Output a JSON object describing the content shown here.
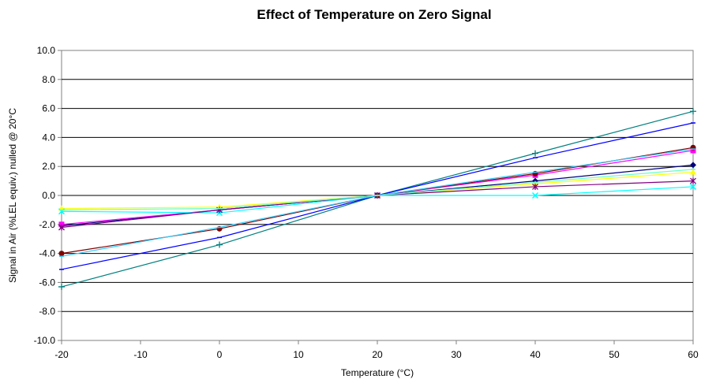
{
  "chart_data": {
    "type": "line",
    "title": "Effect of Temperature on Zero Signal",
    "xlabel": "Temperature (°C)",
    "ylabel": "Signal in Air (%LEL equiv.) nulled @ 20°C",
    "xlim": [
      -20,
      60
    ],
    "ylim": [
      -10,
      10
    ],
    "xticks": [
      -20,
      -10,
      0,
      10,
      20,
      30,
      40,
      50,
      60
    ],
    "yticks": [
      10,
      8,
      6,
      4,
      2,
      0,
      -2,
      -4,
      -6,
      -8,
      -10
    ],
    "ytick_labels": [
      "10.0",
      "8.0",
      "6.0",
      "4.0",
      "2.0",
      "0.0",
      "-2.0",
      "-4.0",
      "-6.0",
      "-8.0",
      "-10.0"
    ],
    "grid": "horizontal",
    "legend": "none",
    "x": [
      -20,
      0,
      20,
      40,
      60
    ],
    "series": [
      {
        "color": "#000080",
        "marker": "diamond",
        "values": [
          -2.1,
          -1.0,
          0.0,
          1.0,
          2.1
        ]
      },
      {
        "color": "#ff00ff",
        "marker": "square",
        "values": [
          -2.0,
          -1.0,
          0.0,
          1.4,
          3.1
        ]
      },
      {
        "color": "#ffff00",
        "marker": "triangle",
        "values": [
          -0.9,
          -0.8,
          0.0,
          0.8,
          1.6
        ]
      },
      {
        "color": "#00ffff",
        "marker": "x",
        "values": [
          -1.1,
          -1.2,
          0.0,
          0.0,
          0.6
        ]
      },
      {
        "color": "#800080",
        "marker": "star",
        "values": [
          -2.2,
          -1.0,
          0.0,
          0.6,
          1.0
        ]
      },
      {
        "color": "#800000",
        "marker": "circle",
        "values": [
          -4.0,
          -2.3,
          0.0,
          1.5,
          3.3
        ]
      },
      {
        "color": "#008080",
        "marker": "plus",
        "values": [
          -6.3,
          -3.4,
          0.0,
          2.9,
          5.8
        ]
      },
      {
        "color": "#0000ff",
        "marker": "dash",
        "values": [
          -5.1,
          -2.9,
          0.0,
          2.6,
          5.0
        ]
      },
      {
        "color": "#33ccff",
        "marker": "dash",
        "values": [
          -4.2,
          -2.2,
          0.0,
          1.6,
          3.2
        ]
      },
      {
        "color": "#66ffcc",
        "marker": "dash",
        "values": [
          -1.0,
          -0.9,
          0.0,
          0.9,
          1.8
        ]
      }
    ]
  }
}
